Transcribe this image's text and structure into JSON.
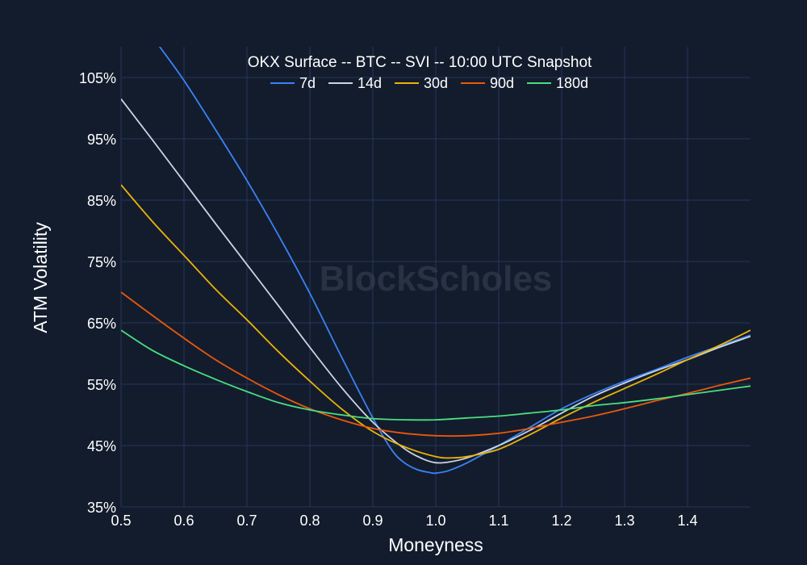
{
  "chart_data": {
    "type": "line",
    "title": "OKX Surface -- BTC -- SVI -- 10:00 UTC Snapshot",
    "xlabel": "Moneyness",
    "ylabel": "ATM Volatility",
    "watermark": "BlockScholes",
    "xlim": [
      0.5,
      1.5
    ],
    "ylim": [
      35,
      110
    ],
    "x_ticks": [
      0.5,
      0.6,
      0.7,
      0.8,
      0.9,
      1.0,
      1.1,
      1.2,
      1.3,
      1.4
    ],
    "x_tick_labels": [
      "0.5",
      "0.6",
      "0.7",
      "0.8",
      "0.9",
      "1.0",
      "1.1",
      "1.2",
      "1.3",
      "1.4"
    ],
    "y_ticks": [
      35,
      45,
      55,
      65,
      75,
      85,
      95,
      105
    ],
    "y_tick_labels": [
      "35%",
      "45%",
      "55%",
      "65%",
      "75%",
      "85%",
      "95%",
      "105%"
    ],
    "grid": true,
    "legend_position": "top-center",
    "series": [
      {
        "name": "7d",
        "color": "#3b82f6",
        "x": [
          0.56,
          0.6,
          0.65,
          0.7,
          0.75,
          0.8,
          0.85,
          0.9,
          0.93,
          0.95,
          0.97,
          0.99,
          1.0,
          1.02,
          1.05,
          1.1,
          1.15,
          1.2,
          1.25,
          1.3,
          1.35,
          1.4,
          1.45,
          1.5
        ],
        "y": [
          110.2,
          104.5,
          96.5,
          88.2,
          79.3,
          69.8,
          59.5,
          49.5,
          44.3,
          42.2,
          41.1,
          40.6,
          40.5,
          40.9,
          42.2,
          45.0,
          48.0,
          51.0,
          53.4,
          55.5,
          57.4,
          59.4,
          61.2,
          63.0
        ]
      },
      {
        "name": "14d",
        "color": "#cbd5e1",
        "x": [
          0.5,
          0.55,
          0.6,
          0.65,
          0.7,
          0.75,
          0.8,
          0.85,
          0.9,
          0.95,
          0.98,
          1.0,
          1.02,
          1.05,
          1.1,
          1.15,
          1.2,
          1.25,
          1.3,
          1.35,
          1.4,
          1.45,
          1.5
        ],
        "y": [
          101.5,
          94.8,
          88.0,
          81.2,
          74.5,
          67.8,
          61.0,
          54.5,
          48.8,
          44.5,
          42.8,
          42.2,
          42.3,
          43.0,
          45.0,
          47.5,
          50.3,
          53.0,
          55.2,
          57.2,
          59.0,
          61.0,
          62.8
        ]
      },
      {
        "name": "30d",
        "color": "#eab308",
        "x": [
          0.5,
          0.55,
          0.6,
          0.65,
          0.7,
          0.75,
          0.8,
          0.85,
          0.9,
          0.95,
          1.0,
          1.03,
          1.06,
          1.1,
          1.15,
          1.2,
          1.25,
          1.3,
          1.35,
          1.4,
          1.45,
          1.5
        ],
        "y": [
          87.5,
          81.5,
          76.0,
          70.5,
          65.5,
          60.3,
          55.5,
          51.0,
          47.3,
          44.8,
          43.2,
          43.0,
          43.4,
          44.4,
          46.8,
          49.5,
          52.0,
          54.3,
          56.6,
          59.0,
          61.3,
          63.8
        ]
      },
      {
        "name": "90d",
        "color": "#ea580c",
        "x": [
          0.5,
          0.55,
          0.6,
          0.65,
          0.7,
          0.75,
          0.8,
          0.85,
          0.9,
          0.95,
          1.0,
          1.05,
          1.1,
          1.15,
          1.2,
          1.25,
          1.3,
          1.35,
          1.4,
          1.45,
          1.5
        ],
        "y": [
          70.0,
          66.2,
          62.5,
          59.0,
          56.0,
          53.3,
          51.0,
          49.2,
          47.8,
          47.0,
          46.6,
          46.6,
          47.0,
          47.8,
          48.8,
          49.8,
          51.0,
          52.3,
          53.5,
          54.8,
          56.0
        ]
      },
      {
        "name": "180d",
        "color": "#4ade80",
        "x": [
          0.5,
          0.55,
          0.6,
          0.65,
          0.7,
          0.75,
          0.8,
          0.85,
          0.9,
          0.95,
          1.0,
          1.05,
          1.1,
          1.15,
          1.2,
          1.25,
          1.3,
          1.35,
          1.4,
          1.45,
          1.5
        ],
        "y": [
          63.8,
          60.5,
          58.0,
          55.8,
          53.8,
          52.0,
          50.8,
          50.0,
          49.4,
          49.2,
          49.2,
          49.5,
          49.8,
          50.3,
          50.8,
          51.5,
          52.0,
          52.6,
          53.3,
          54.0,
          54.7
        ]
      }
    ]
  }
}
